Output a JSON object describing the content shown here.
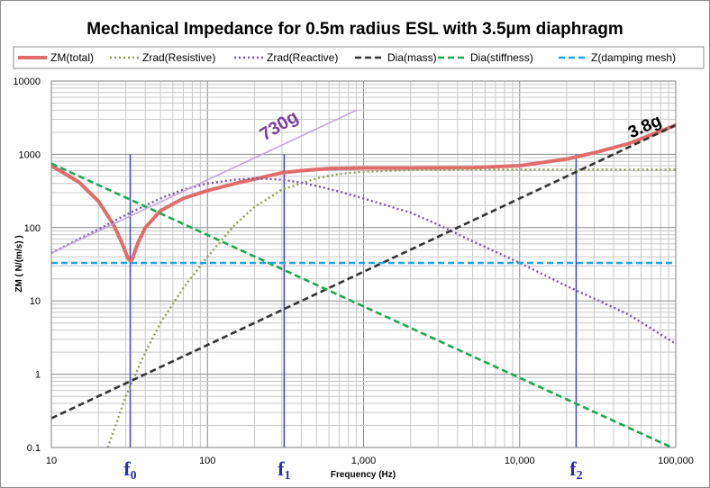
{
  "chart_data": {
    "type": "line",
    "title": "Mechanical Impedance for 0.5m radius ESL with 3.5µm diaphragm",
    "xlabel": "Frequency (Hz)",
    "ylabel": "ZM ( N/(m/s) )",
    "xscale": "log",
    "yscale": "log",
    "xlim": [
      10,
      100000
    ],
    "ylim": [
      0.1,
      10000
    ],
    "grid": true,
    "legend_position": "top",
    "x_tick_labels": [
      "10",
      "100",
      "1,000",
      "10,000",
      "100,000"
    ],
    "y_tick_labels": [
      "0.1",
      "1",
      "10",
      "100",
      "1000",
      "10000"
    ],
    "markers": [
      {
        "label": "f",
        "sub": "0",
        "x": 32
      },
      {
        "label": "f",
        "sub": "1",
        "x": 310
      },
      {
        "label": "f",
        "sub": "2",
        "x": 23000
      }
    ],
    "annotations": [
      {
        "text": "730g",
        "color": "#7b3fa0"
      },
      {
        "text": "3.8g",
        "color": "#000000"
      }
    ],
    "series": [
      {
        "name": "ZM(total)",
        "color": "#e06c6c",
        "style": "solid",
        "x": [
          10,
          15,
          20,
          25,
          28,
          30,
          31,
          32,
          33,
          34,
          36,
          40,
          50,
          70,
          100,
          150,
          200,
          300,
          400,
          600,
          1000,
          2000,
          5000,
          10000,
          20000,
          30000,
          50000,
          100000
        ],
        "y": [
          700,
          420,
          230,
          110,
          65,
          45,
          38,
          35,
          37,
          45,
          63,
          100,
          170,
          250,
          320,
          400,
          460,
          560,
          600,
          640,
          650,
          650,
          660,
          700,
          860,
          1050,
          1400,
          2500
        ]
      },
      {
        "name": "Zrad(Resistive)",
        "color": "#8f9d4f",
        "style": "dotted",
        "x": [
          23,
          30,
          40,
          50,
          70,
          100,
          150,
          200,
          300,
          500,
          700,
          1000,
          2000,
          5000,
          10000,
          100000
        ],
        "y": [
          0.1,
          0.5,
          2,
          5,
          15,
          40,
          110,
          190,
          330,
          470,
          540,
          580,
          610,
          620,
          620,
          620
        ]
      },
      {
        "name": "Zrad(Reactive)",
        "color": "#7b4fa7",
        "style": "dotted",
        "x": [
          10,
          20,
          32,
          50,
          70,
          100,
          150,
          200,
          300,
          400,
          500,
          700,
          1000,
          2000,
          3000,
          5000,
          10000,
          20000,
          50000,
          100000
        ],
        "y": [
          45,
          95,
          160,
          250,
          330,
          400,
          450,
          470,
          450,
          410,
          370,
          310,
          250,
          160,
          110,
          65,
          33,
          16,
          6.5,
          2.6
        ]
      },
      {
        "name": "Dia(mass)",
        "color": "#333333",
        "style": "dashed",
        "x": [
          10,
          100000
        ],
        "y": [
          0.25,
          2500
        ]
      },
      {
        "name": "Dia(stiffness)",
        "color": "#1aa84f",
        "style": "dashed",
        "x": [
          10,
          100000
        ],
        "y": [
          750,
          0.075
        ]
      },
      {
        "name": "Z(damping mesh)",
        "color": "#1ea7dd",
        "style": "dashed",
        "x": [
          10,
          100000
        ],
        "y": [
          33,
          33
        ]
      },
      {
        "name": "730g",
        "color": "#c3a3dc",
        "style": "solid",
        "in_legend": false,
        "x": [
          10,
          900
        ],
        "y": [
          45,
          4000
        ]
      }
    ]
  }
}
